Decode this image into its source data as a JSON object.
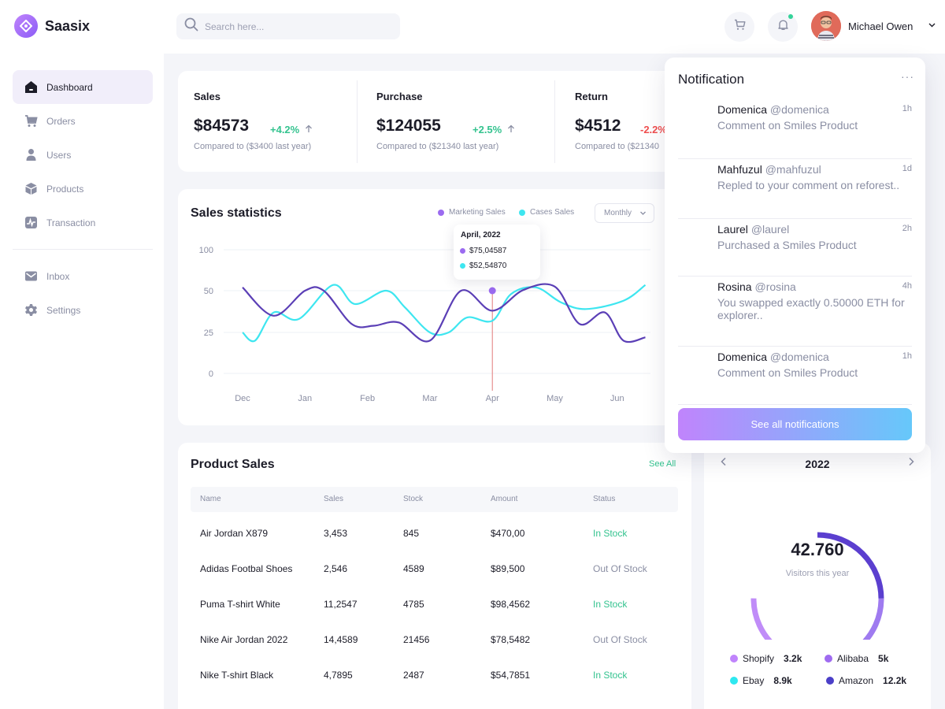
{
  "app": {
    "name": "Saasix"
  },
  "colors": {
    "accent": "#8b5cf6",
    "marketing": "#5b3fb6",
    "cases": "#3ee6f0",
    "positive": "#34c38f",
    "negative": "#f04f4f",
    "shopify": "#c084fc",
    "alibaba": "#9f6bf0",
    "ebay": "#2ee8f0",
    "amazon": "#4b3fc8"
  },
  "sidebar": {
    "items": [
      {
        "label": "Dashboard",
        "icon": "dashboard-icon",
        "active": true
      },
      {
        "label": "Orders",
        "icon": "cart-icon"
      },
      {
        "label": "Users",
        "icon": "user-icon"
      },
      {
        "label": "Products",
        "icon": "box-icon"
      },
      {
        "label": "Transaction",
        "icon": "transaction-icon"
      }
    ],
    "secondary": [
      {
        "label": "Inbox",
        "icon": "mail-icon"
      },
      {
        "label": "Settings",
        "icon": "gear-icon"
      }
    ]
  },
  "header": {
    "search_placeholder": "Search here...",
    "user_name": "Michael Owen"
  },
  "stats": [
    {
      "title": "Sales",
      "value": "$84573",
      "change": "+4.2%",
      "direction": "up",
      "sub": "Compared to ($3400 last year)"
    },
    {
      "title": "Purchase",
      "value": "$124055",
      "change": "+2.5%",
      "direction": "up",
      "sub": "Compared to ($21340 last year)"
    },
    {
      "title": "Return",
      "value": "$4512",
      "change": "-2.2%",
      "direction": "down",
      "sub": "Compared to ($21340"
    }
  ],
  "sales_statistics": {
    "title": "Sales statistics",
    "legend": [
      "Marketing Sales",
      "Cases Sales"
    ],
    "period": "Monthly",
    "tooltip": {
      "title": "April, 2022",
      "marketing": "$75,04587",
      "cases": "$52,54870"
    }
  },
  "chart_data": {
    "type": "line",
    "x": [
      "Dec",
      "Jan",
      "Feb",
      "Mar",
      "Apr",
      "May",
      "Jun"
    ],
    "ylim": [
      0,
      100
    ],
    "yticks": [
      0,
      25,
      50,
      100
    ],
    "grid": true,
    "series": [
      {
        "name": "Marketing Sales",
        "points": [
          [
            0,
            54
          ],
          [
            0.5,
            35
          ],
          [
            1,
            50
          ],
          [
            1.3,
            50
          ],
          [
            1.75,
            30
          ],
          [
            2.1,
            29
          ],
          [
            2.5,
            31
          ],
          [
            3,
            20
          ],
          [
            3.5,
            50
          ],
          [
            4,
            38
          ],
          [
            4.5,
            51
          ],
          [
            5,
            55
          ],
          [
            5.4,
            30
          ],
          [
            5.8,
            37
          ],
          [
            6.1,
            20
          ],
          [
            6.45,
            22
          ]
        ]
      },
      {
        "name": "Cases Sales",
        "points": [
          [
            0,
            25
          ],
          [
            0.2,
            20
          ],
          [
            0.5,
            37
          ],
          [
            0.9,
            33
          ],
          [
            1.45,
            57
          ],
          [
            1.8,
            42
          ],
          [
            2.3,
            50
          ],
          [
            2.6,
            40
          ],
          [
            3,
            25
          ],
          [
            3.3,
            25
          ],
          [
            3.6,
            34
          ],
          [
            4,
            32
          ],
          [
            4.3,
            48
          ],
          [
            4.7,
            54
          ],
          [
            5.1,
            43
          ],
          [
            5.5,
            39
          ],
          [
            6.1,
            44
          ],
          [
            6.45,
            57
          ]
        ]
      }
    ]
  },
  "product_sales": {
    "title": "Product Sales",
    "see_all": "See All",
    "columns": [
      "Name",
      "Sales",
      "Stock",
      "Amount",
      "Status"
    ],
    "rows": [
      {
        "name": "Air Jordan X879",
        "sales": "3,453",
        "stock": "845",
        "amount": "$470,00",
        "status": "In Stock"
      },
      {
        "name": "Adidas Footbal Shoes",
        "sales": "2,546",
        "stock": "4589",
        "amount": "$89,500",
        "status": "Out Of Stock"
      },
      {
        "name": "Puma T-shirt White",
        "sales": "11,2547",
        "stock": "4785",
        "amount": "$98,4562",
        "status": "In Stock"
      },
      {
        "name": "Nike Air Jordan 2022",
        "sales": "14,4589",
        "stock": "21456",
        "amount": "$78,5482",
        "status": "Out Of Stock"
      },
      {
        "name": "Nike T-shirt Black",
        "sales": "4,7895",
        "stock": "2487",
        "amount": "$54,7851",
        "status": "In Stock"
      }
    ]
  },
  "visitors": {
    "year": "2022",
    "total": "42.760",
    "label": "Visitors this year",
    "sources": [
      {
        "name": "Shopify",
        "value": "3.2k"
      },
      {
        "name": "Alibaba",
        "value": "5k"
      },
      {
        "name": "Ebay",
        "value": "8.9k"
      },
      {
        "name": "Amazon",
        "value": "12.2k"
      }
    ]
  },
  "notifications": {
    "title": "Notification",
    "more": "···",
    "items": [
      {
        "name": "Domenica",
        "handle": "@domenica",
        "time": "1h",
        "text": "Comment on Smiles Product"
      },
      {
        "name": "Mahfuzul",
        "handle": "@mahfuzul",
        "time": "1d",
        "text": "Repled to your comment on reforest.."
      },
      {
        "name": "Laurel",
        "handle": "@laurel",
        "time": "2h",
        "text": "Purchased a Smiles Product"
      },
      {
        "name": "Rosina",
        "handle": "@rosina",
        "time": "4h",
        "text": "You swapped exactly 0.50000 ETH for explorer.."
      },
      {
        "name": "Domenica",
        "handle": "@domenica",
        "time": "1h",
        "text": "Comment on Smiles Product"
      }
    ],
    "button": "See all notifications"
  }
}
